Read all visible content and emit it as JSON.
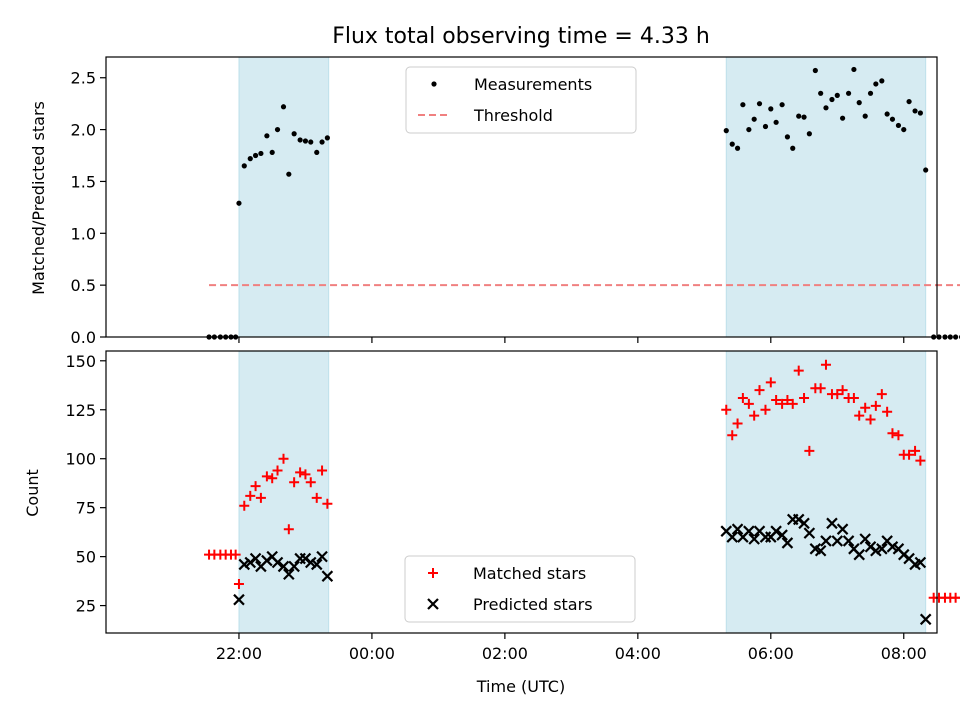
{
  "chart_data": [
    {
      "type": "scatter",
      "panel": "top",
      "title": "Flux total observing time = 4.33 h",
      "xlabel": "",
      "ylabel": "Matched/Predicted stars",
      "x_unit": "hours since 20:00 UTC (axis shows clock time)",
      "xlim": [
        20.0,
        32.5
      ],
      "ylim": [
        0.0,
        2.7
      ],
      "yticks": [
        0.0,
        0.5,
        1.0,
        1.5,
        2.0,
        2.5
      ],
      "ytick_labels": [
        "0.0",
        "0.5",
        "1.0",
        "1.5",
        "2.0",
        "2.5"
      ],
      "shaded_intervals": [
        [
          22.0,
          23.35
        ],
        [
          29.33,
          32.33
        ]
      ],
      "shade_color": "#add8e6",
      "legend": {
        "placement": "top-center",
        "entries": [
          "Measurements",
          "Threshold"
        ]
      },
      "series": [
        {
          "name": "Measurements",
          "marker": "dot",
          "color": "#000000",
          "points": [
            [
              21.55,
              0
            ],
            [
              21.63,
              0
            ],
            [
              21.72,
              0
            ],
            [
              21.8,
              0
            ],
            [
              21.88,
              0
            ],
            [
              21.95,
              0
            ],
            [
              22.0,
              1.29
            ],
            [
              22.08,
              1.65
            ],
            [
              22.17,
              1.72
            ],
            [
              22.25,
              1.75
            ],
            [
              22.33,
              1.77
            ],
            [
              22.42,
              1.94
            ],
            [
              22.5,
              1.78
            ],
            [
              22.58,
              2.0
            ],
            [
              22.67,
              2.22
            ],
            [
              22.75,
              1.57
            ],
            [
              22.83,
              1.96
            ],
            [
              22.92,
              1.9
            ],
            [
              23.0,
              1.89
            ],
            [
              23.08,
              1.88
            ],
            [
              23.17,
              1.78
            ],
            [
              23.25,
              1.88
            ],
            [
              23.33,
              1.92
            ],
            [
              29.33,
              1.99
            ],
            [
              29.42,
              1.86
            ],
            [
              29.5,
              1.82
            ],
            [
              29.58,
              2.24
            ],
            [
              29.67,
              2.0
            ],
            [
              29.75,
              2.1
            ],
            [
              29.83,
              2.25
            ],
            [
              29.92,
              2.03
            ],
            [
              30.0,
              2.2
            ],
            [
              30.08,
              2.07
            ],
            [
              30.17,
              2.24
            ],
            [
              30.25,
              1.93
            ],
            [
              30.33,
              1.82
            ],
            [
              30.42,
              2.13
            ],
            [
              30.5,
              2.12
            ],
            [
              30.58,
              1.96
            ],
            [
              30.67,
              2.57
            ],
            [
              30.75,
              2.35
            ],
            [
              30.83,
              2.21
            ],
            [
              30.92,
              2.29
            ],
            [
              31.0,
              2.33
            ],
            [
              31.08,
              2.11
            ],
            [
              31.17,
              2.35
            ],
            [
              31.25,
              2.58
            ],
            [
              31.33,
              2.26
            ],
            [
              31.42,
              2.13
            ],
            [
              31.5,
              2.35
            ],
            [
              31.58,
              2.44
            ],
            [
              31.67,
              2.47
            ],
            [
              31.75,
              2.15
            ],
            [
              31.83,
              2.1
            ],
            [
              31.92,
              2.04
            ],
            [
              32.0,
              2.0
            ],
            [
              32.08,
              2.27
            ],
            [
              32.17,
              2.18
            ],
            [
              32.25,
              2.16
            ],
            [
              32.33,
              1.61
            ],
            [
              32.45,
              0
            ],
            [
              32.53,
              0
            ],
            [
              32.62,
              0
            ],
            [
              32.7,
              0
            ],
            [
              32.78,
              0
            ],
            [
              32.87,
              0
            ],
            [
              32.95,
              0
            ]
          ]
        },
        {
          "name": "Threshold",
          "style": "dashed-line",
          "color": "#f08080",
          "points": [
            [
              21.55,
              0.5
            ],
            [
              32.95,
              0.5
            ]
          ]
        }
      ]
    },
    {
      "type": "scatter",
      "panel": "bottom",
      "title": "",
      "xlabel": "Time (UTC)",
      "ylabel": "Count",
      "x_unit": "hours since 20:00 UTC (axis shows clock time)",
      "xlim": [
        20.0,
        32.5
      ],
      "ylim": [
        11,
        155
      ],
      "yticks": [
        25,
        50,
        75,
        100,
        125,
        150
      ],
      "ytick_labels": [
        "25",
        "50",
        "75",
        "100",
        "125",
        "150"
      ],
      "xticks": [
        22,
        24,
        26,
        28,
        30,
        32
      ],
      "xtick_labels": [
        "22:00",
        "00:00",
        "02:00",
        "04:00",
        "06:00",
        "08:00"
      ],
      "shaded_intervals": [
        [
          22.0,
          23.35
        ],
        [
          29.33,
          32.33
        ]
      ],
      "shade_color": "#add8e6",
      "legend": {
        "placement": "bottom-center",
        "entries": [
          "Matched stars",
          "Predicted stars"
        ]
      },
      "series": [
        {
          "name": "Matched stars",
          "marker": "plus",
          "color": "#ff0000",
          "points": [
            [
              21.55,
              51
            ],
            [
              21.63,
              51
            ],
            [
              21.72,
              51
            ],
            [
              21.8,
              51
            ],
            [
              21.88,
              51
            ],
            [
              21.95,
              51
            ],
            [
              22.0,
              36
            ],
            [
              22.08,
              76
            ],
            [
              22.17,
              81
            ],
            [
              22.25,
              86
            ],
            [
              22.33,
              80
            ],
            [
              22.42,
              91
            ],
            [
              22.5,
              90
            ],
            [
              22.58,
              94
            ],
            [
              22.67,
              100
            ],
            [
              22.75,
              64
            ],
            [
              22.83,
              88
            ],
            [
              22.92,
              93
            ],
            [
              23.0,
              92
            ],
            [
              23.08,
              88
            ],
            [
              23.17,
              80
            ],
            [
              23.25,
              94
            ],
            [
              23.33,
              77
            ],
            [
              29.33,
              125
            ],
            [
              29.42,
              112
            ],
            [
              29.5,
              118
            ],
            [
              29.58,
              131
            ],
            [
              29.67,
              128
            ],
            [
              29.75,
              122
            ],
            [
              29.83,
              135
            ],
            [
              29.92,
              125
            ],
            [
              30.0,
              139
            ],
            [
              30.08,
              130
            ],
            [
              30.17,
              128
            ],
            [
              30.25,
              130
            ],
            [
              30.33,
              128
            ],
            [
              30.42,
              145
            ],
            [
              30.5,
              131
            ],
            [
              30.58,
              104
            ],
            [
              30.67,
              136
            ],
            [
              30.75,
              136
            ],
            [
              30.83,
              148
            ],
            [
              30.92,
              133
            ],
            [
              31.0,
              133
            ],
            [
              31.08,
              135
            ],
            [
              31.17,
              131
            ],
            [
              31.25,
              131
            ],
            [
              31.33,
              122
            ],
            [
              31.42,
              126
            ],
            [
              31.5,
              120
            ],
            [
              31.58,
              127
            ],
            [
              31.67,
              133
            ],
            [
              31.75,
              124
            ],
            [
              31.83,
              113
            ],
            [
              31.92,
              112
            ],
            [
              32.0,
              102
            ],
            [
              32.08,
              102
            ],
            [
              32.17,
              104
            ],
            [
              32.25,
              99
            ],
            [
              32.45,
              29
            ],
            [
              32.53,
              29
            ],
            [
              32.62,
              29
            ],
            [
              32.7,
              29
            ],
            [
              32.78,
              29
            ],
            [
              32.87,
              29
            ],
            [
              32.95,
              29
            ]
          ]
        },
        {
          "name": "Predicted stars",
          "marker": "x",
          "color": "#000000",
          "points": [
            [
              22.0,
              28
            ],
            [
              22.08,
              46
            ],
            [
              22.17,
              47
            ],
            [
              22.25,
              49
            ],
            [
              22.33,
              45
            ],
            [
              22.42,
              48
            ],
            [
              22.5,
              50
            ],
            [
              22.58,
              47
            ],
            [
              22.67,
              45
            ],
            [
              22.75,
              41
            ],
            [
              22.83,
              45
            ],
            [
              22.92,
              49
            ],
            [
              23.0,
              49
            ],
            [
              23.08,
              47
            ],
            [
              23.17,
              46
            ],
            [
              23.25,
              50
            ],
            [
              23.33,
              40
            ],
            [
              29.33,
              63
            ],
            [
              29.42,
              60
            ],
            [
              29.5,
              64
            ],
            [
              29.58,
              60
            ],
            [
              29.67,
              63
            ],
            [
              29.75,
              59
            ],
            [
              29.83,
              63
            ],
            [
              29.92,
              60
            ],
            [
              30.0,
              60
            ],
            [
              30.08,
              63
            ],
            [
              30.17,
              61
            ],
            [
              30.25,
              57
            ],
            [
              30.33,
              69
            ],
            [
              30.42,
              69
            ],
            [
              30.5,
              67
            ],
            [
              30.58,
              62
            ],
            [
              30.67,
              54
            ],
            [
              30.75,
              53
            ],
            [
              30.83,
              58
            ],
            [
              30.92,
              67
            ],
            [
              31.0,
              58
            ],
            [
              31.08,
              64
            ],
            [
              31.17,
              58
            ],
            [
              31.25,
              54
            ],
            [
              31.33,
              51
            ],
            [
              31.42,
              59
            ],
            [
              31.5,
              55
            ],
            [
              31.58,
              53
            ],
            [
              31.67,
              54
            ],
            [
              31.75,
              58
            ],
            [
              31.83,
              55
            ],
            [
              31.92,
              54
            ],
            [
              32.0,
              51
            ],
            [
              32.08,
              49
            ],
            [
              32.17,
              46
            ],
            [
              32.25,
              47
            ],
            [
              32.33,
              18
            ]
          ]
        }
      ]
    }
  ]
}
